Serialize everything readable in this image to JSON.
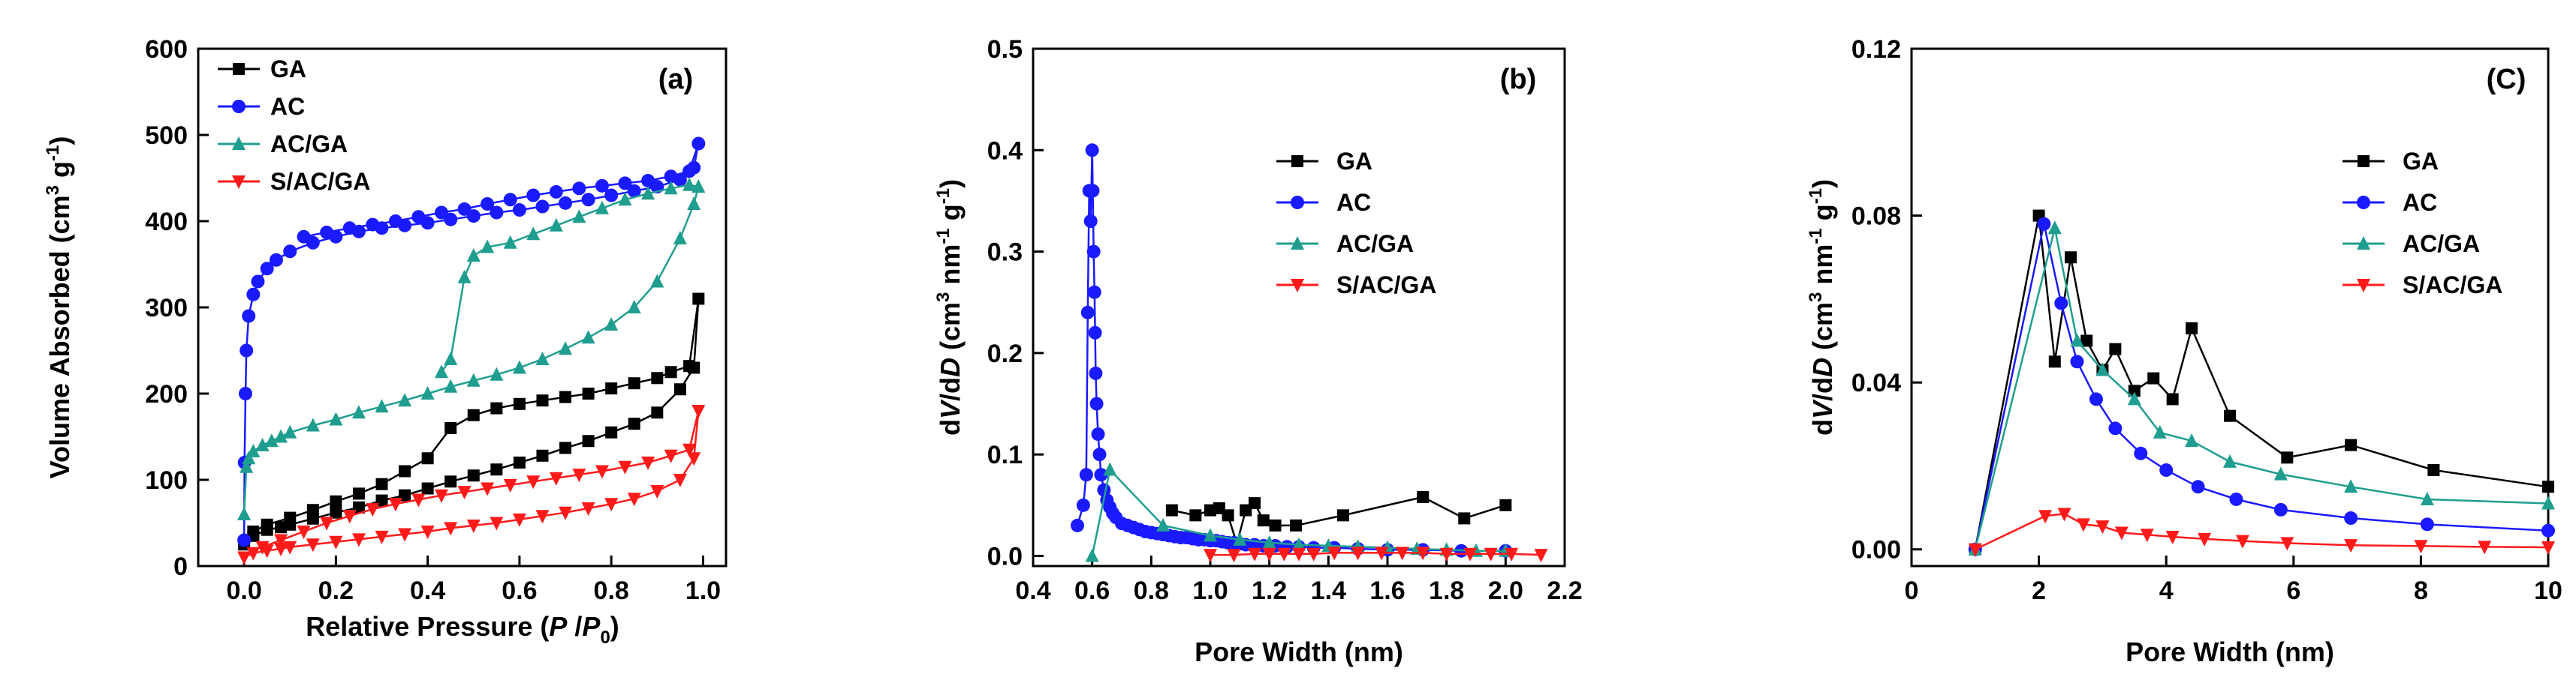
{
  "chart_data": [
    {
      "type": "line",
      "panel_label": "(a)",
      "xlabel_main": "Relative Pressure (",
      "xlabel_P": "P",
      "xlabel_slash": " /",
      "xlabel_P0": "P",
      "xlabel_sub": "0",
      "xlabel_close": ")",
      "ylabel_main": "Volume Absorbed (cm",
      "ylabel_sup3": "3",
      "ylabel_g": " g",
      "ylabel_supm1": "-1",
      "ylabel_close": ")",
      "xlim": [
        -0.1,
        1.05
      ],
      "ylim": [
        0,
        600
      ],
      "xticks": [
        0.0,
        0.2,
        0.4,
        0.6,
        0.8,
        1.0
      ],
      "xtick_labels": [
        "0.0",
        "0.2",
        "0.4",
        "0.6",
        "0.8",
        "1.0"
      ],
      "yticks": [
        0,
        100,
        200,
        300,
        400,
        500,
        600
      ],
      "ytick_labels": [
        "0",
        "100",
        "200",
        "300",
        "400",
        "500",
        "600"
      ],
      "legend_position": "top-left",
      "series": [
        {
          "name": "GA",
          "color": "#000000",
          "marker": "square",
          "x": [
            0.0,
            0.02,
            0.05,
            0.08,
            0.1,
            0.15,
            0.2,
            0.25,
            0.3,
            0.35,
            0.4,
            0.45,
            0.5,
            0.55,
            0.6,
            0.65,
            0.7,
            0.75,
            0.8,
            0.85,
            0.9,
            0.95,
            0.98,
            0.99,
            0.97,
            0.93,
            0.9,
            0.85,
            0.8,
            0.75,
            0.7,
            0.65,
            0.6,
            0.55,
            0.5,
            0.45,
            0.4,
            0.35,
            0.3,
            0.25,
            0.2,
            0.15,
            0.1,
            0.05,
            0.02
          ],
          "y": [
            25,
            35,
            42,
            45,
            48,
            55,
            62,
            68,
            76,
            82,
            90,
            98,
            105,
            112,
            120,
            128,
            137,
            145,
            155,
            165,
            178,
            205,
            230,
            310,
            232,
            225,
            218,
            212,
            206,
            200,
            196,
            192,
            188,
            183,
            175,
            160,
            125,
            110,
            95,
            84,
            75,
            65,
            56,
            48,
            40
          ]
        },
        {
          "name": "AC",
          "color": "#1a1aff",
          "marker": "circle",
          "x": [
            0.0,
            0.001,
            0.003,
            0.005,
            0.01,
            0.02,
            0.03,
            0.05,
            0.07,
            0.1,
            0.15,
            0.2,
            0.25,
            0.3,
            0.35,
            0.4,
            0.45,
            0.5,
            0.55,
            0.6,
            0.65,
            0.7,
            0.75,
            0.8,
            0.85,
            0.9,
            0.95,
            0.98,
            0.99,
            0.97,
            0.93,
            0.88,
            0.83,
            0.78,
            0.73,
            0.68,
            0.63,
            0.58,
            0.53,
            0.48,
            0.43,
            0.38,
            0.33,
            0.28,
            0.23,
            0.18,
            0.13
          ],
          "y": [
            30,
            120,
            200,
            250,
            290,
            315,
            330,
            345,
            355,
            365,
            375,
            382,
            388,
            392,
            395,
            398,
            402,
            406,
            410,
            413,
            417,
            421,
            425,
            430,
            435,
            440,
            448,
            462,
            490,
            458,
            452,
            447,
            444,
            441,
            438,
            434,
            430,
            425,
            420,
            414,
            410,
            405,
            400,
            396,
            392,
            387,
            382
          ]
        },
        {
          "name": "AC/GA",
          "color": "#1f9e8f",
          "marker": "triangle-up",
          "x": [
            0.0,
            0.005,
            0.01,
            0.02,
            0.04,
            0.06,
            0.08,
            0.1,
            0.15,
            0.2,
            0.25,
            0.3,
            0.35,
            0.4,
            0.45,
            0.5,
            0.55,
            0.6,
            0.65,
            0.7,
            0.75,
            0.8,
            0.85,
            0.9,
            0.95,
            0.98,
            0.99,
            0.97,
            0.93,
            0.88,
            0.83,
            0.78,
            0.73,
            0.68,
            0.63,
            0.58,
            0.53,
            0.5,
            0.48,
            0.45,
            0.43
          ],
          "y": [
            60,
            115,
            125,
            133,
            140,
            145,
            150,
            155,
            163,
            170,
            178,
            185,
            192,
            200,
            208,
            215,
            222,
            230,
            240,
            252,
            265,
            280,
            300,
            330,
            380,
            420,
            440,
            442,
            438,
            432,
            425,
            415,
            405,
            395,
            385,
            375,
            370,
            360,
            335,
            240,
            225
          ]
        },
        {
          "name": "S/AC/GA",
          "color": "#ff1a1a",
          "marker": "triangle-down",
          "x": [
            0.0,
            0.02,
            0.05,
            0.08,
            0.1,
            0.15,
            0.2,
            0.25,
            0.3,
            0.35,
            0.4,
            0.45,
            0.5,
            0.55,
            0.6,
            0.65,
            0.7,
            0.75,
            0.8,
            0.85,
            0.9,
            0.95,
            0.98,
            0.99,
            0.97,
            0.93,
            0.88,
            0.83,
            0.78,
            0.73,
            0.68,
            0.63,
            0.58,
            0.53,
            0.48,
            0.43,
            0.38,
            0.33,
            0.28,
            0.23,
            0.18,
            0.13,
            0.08,
            0.04
          ],
          "y": [
            10,
            15,
            18,
            20,
            22,
            25,
            28,
            31,
            34,
            37,
            40,
            44,
            47,
            50,
            54,
            58,
            62,
            67,
            72,
            78,
            87,
            100,
            125,
            180,
            135,
            128,
            120,
            115,
            110,
            106,
            102,
            98,
            94,
            90,
            86,
            82,
            77,
            72,
            66,
            58,
            50,
            40,
            30,
            22
          ]
        }
      ]
    },
    {
      "type": "line",
      "panel_label": "(b)",
      "xlabel": "Pore Width (nm)",
      "ylabel_d1": "d",
      "ylabel_V": "V",
      "ylabel_slash": "/d",
      "ylabel_D": "D",
      "ylabel_main": " (cm",
      "ylabel_sup3": "3",
      "ylabel_nm": " nm",
      "ylabel_supm1a": "-1",
      "ylabel_g": " g",
      "ylabel_supm1b": "-1",
      "ylabel_close": ")",
      "xlim": [
        0.4,
        2.2
      ],
      "ylim": [
        -0.01,
        0.5
      ],
      "xticks": [
        0.4,
        0.6,
        0.8,
        1.0,
        1.2,
        1.4,
        1.6,
        1.8,
        2.0,
        2.2
      ],
      "xtick_labels": [
        "0.4",
        "0.6",
        "0.8",
        "1.0",
        "1.2",
        "1.4",
        "1.6",
        "1.8",
        "2.0",
        "2.2"
      ],
      "yticks": [
        0.0,
        0.1,
        0.2,
        0.3,
        0.4,
        0.5
      ],
      "ytick_labels": [
        "0.0",
        "0.1",
        "0.2",
        "0.3",
        "0.4",
        "0.5"
      ],
      "legend_position": "top-right",
      "series": [
        {
          "name": "GA",
          "color": "#000000",
          "marker": "square",
          "x": [
            0.87,
            0.95,
            1.0,
            1.03,
            1.06,
            1.09,
            1.12,
            1.15,
            1.18,
            1.22,
            1.29,
            1.45,
            1.72,
            1.86,
            2.0
          ],
          "y": [
            0.045,
            0.04,
            0.045,
            0.047,
            0.04,
            0.012,
            0.045,
            0.052,
            0.035,
            0.03,
            0.03,
            0.04,
            0.058,
            0.037,
            0.05
          ]
        },
        {
          "name": "AC",
          "color": "#1a1aff",
          "marker": "circle",
          "x": [
            0.55,
            0.57,
            0.58,
            0.585,
            0.59,
            0.595,
            0.6,
            0.602,
            0.605,
            0.608,
            0.61,
            0.612,
            0.615,
            0.62,
            0.625,
            0.63,
            0.64,
            0.65,
            0.66,
            0.67,
            0.68,
            0.7,
            0.72,
            0.74,
            0.76,
            0.78,
            0.8,
            0.82,
            0.84,
            0.86,
            0.88,
            0.9,
            0.92,
            0.94,
            0.96,
            0.98,
            1.0,
            1.02,
            1.04,
            1.06,
            1.08,
            1.1,
            1.12,
            1.15,
            1.18,
            1.22,
            1.26,
            1.3,
            1.35,
            1.42,
            1.5,
            1.6,
            1.72,
            1.85,
            2.0
          ],
          "y": [
            0.03,
            0.05,
            0.08,
            0.24,
            0.36,
            0.33,
            0.4,
            0.36,
            0.3,
            0.26,
            0.22,
            0.18,
            0.15,
            0.12,
            0.1,
            0.08,
            0.065,
            0.055,
            0.048,
            0.042,
            0.038,
            0.032,
            0.03,
            0.028,
            0.026,
            0.024,
            0.023,
            0.022,
            0.021,
            0.02,
            0.019,
            0.018,
            0.018,
            0.017,
            0.016,
            0.016,
            0.015,
            0.015,
            0.014,
            0.013,
            0.013,
            0.012,
            0.011,
            0.011,
            0.01,
            0.01,
            0.009,
            0.009,
            0.008,
            0.008,
            0.007,
            0.006,
            0.006,
            0.005,
            0.005
          ]
        },
        {
          "name": "AC/GA",
          "color": "#1f9e8f",
          "marker": "triangle-up",
          "x": [
            0.6,
            0.66,
            0.84,
            1.0,
            1.1,
            1.2,
            1.3,
            1.4,
            1.5,
            1.6,
            1.7,
            1.8,
            1.9,
            2.0
          ],
          "y": [
            0.0,
            0.085,
            0.03,
            0.02,
            0.016,
            0.013,
            0.011,
            0.01,
            0.009,
            0.008,
            0.007,
            0.006,
            0.005,
            0.005
          ]
        },
        {
          "name": "S/AC/GA",
          "color": "#ff1a1a",
          "marker": "triangle-down",
          "x": [
            1.0,
            1.08,
            1.15,
            1.2,
            1.25,
            1.3,
            1.35,
            1.42,
            1.5,
            1.58,
            1.65,
            1.72,
            1.8,
            1.88,
            1.95,
            2.02,
            2.12
          ],
          "y": [
            0.001,
            0.001,
            0.002,
            0.002,
            0.002,
            0.002,
            0.002,
            0.003,
            0.003,
            0.003,
            0.003,
            0.003,
            0.002,
            0.002,
            0.002,
            0.002,
            0.001
          ]
        }
      ]
    },
    {
      "type": "line",
      "panel_label": "(C)",
      "xlabel": "Pore Width (nm)",
      "ylabel_d1": "d",
      "ylabel_V": "V",
      "ylabel_slash": "/d",
      "ylabel_D": "D",
      "ylabel_main": " (cm",
      "ylabel_sup3": "3",
      "ylabel_nm": " nm",
      "ylabel_supm1a": "-1",
      "ylabel_g": " g",
      "ylabel_supm1b": "-1",
      "ylabel_close": ")",
      "xlim": [
        0,
        10
      ],
      "ylim": [
        -0.004,
        0.12
      ],
      "xticks": [
        0,
        2,
        4,
        6,
        8,
        10
      ],
      "xtick_labels": [
        "0",
        "2",
        "4",
        "6",
        "8",
        "10"
      ],
      "yticks": [
        0.0,
        0.04,
        0.08,
        0.12
      ],
      "ytick_labels": [
        "0.00",
        "0.04",
        "0.08",
        "0.12"
      ],
      "legend_position": "top-right",
      "series": [
        {
          "name": "GA",
          "color": "#000000",
          "marker": "square",
          "x": [
            1.0,
            2.0,
            2.25,
            2.5,
            2.75,
            3.0,
            3.2,
            3.5,
            3.8,
            4.1,
            4.4,
            5.0,
            5.9,
            6.9,
            8.2,
            10.0
          ],
          "y": [
            0.0,
            0.08,
            0.045,
            0.07,
            0.05,
            0.043,
            0.048,
            0.038,
            0.041,
            0.036,
            0.053,
            0.032,
            0.022,
            0.025,
            0.019,
            0.015
          ]
        },
        {
          "name": "AC",
          "color": "#1a1aff",
          "marker": "circle",
          "x": [
            1.0,
            2.08,
            2.35,
            2.6,
            2.9,
            3.2,
            3.6,
            4.0,
            4.5,
            5.1,
            5.8,
            6.9,
            8.1,
            10.0
          ],
          "y": [
            0.0,
            0.078,
            0.059,
            0.045,
            0.036,
            0.029,
            0.023,
            0.019,
            0.015,
            0.012,
            0.0095,
            0.0075,
            0.006,
            0.0045
          ]
        },
        {
          "name": "AC/GA",
          "color": "#1f9e8f",
          "marker": "triangle-up",
          "x": [
            1.0,
            2.25,
            2.6,
            3.0,
            3.5,
            3.9,
            4.4,
            5.0,
            5.8,
            6.9,
            8.1,
            10.0
          ],
          "y": [
            0.0,
            0.077,
            0.05,
            0.043,
            0.036,
            0.028,
            0.026,
            0.021,
            0.018,
            0.015,
            0.012,
            0.011
          ]
        },
        {
          "name": "S/AC/GA",
          "color": "#ff1a1a",
          "marker": "triangle-down",
          "x": [
            1.0,
            2.1,
            2.4,
            2.7,
            3.0,
            3.3,
            3.7,
            4.1,
            4.6,
            5.2,
            5.9,
            6.9,
            8.0,
            9.0,
            10.0
          ],
          "y": [
            0.0,
            0.008,
            0.0085,
            0.006,
            0.0055,
            0.004,
            0.0035,
            0.003,
            0.0025,
            0.002,
            0.0015,
            0.001,
            0.0008,
            0.0006,
            0.0005
          ]
        }
      ]
    }
  ]
}
